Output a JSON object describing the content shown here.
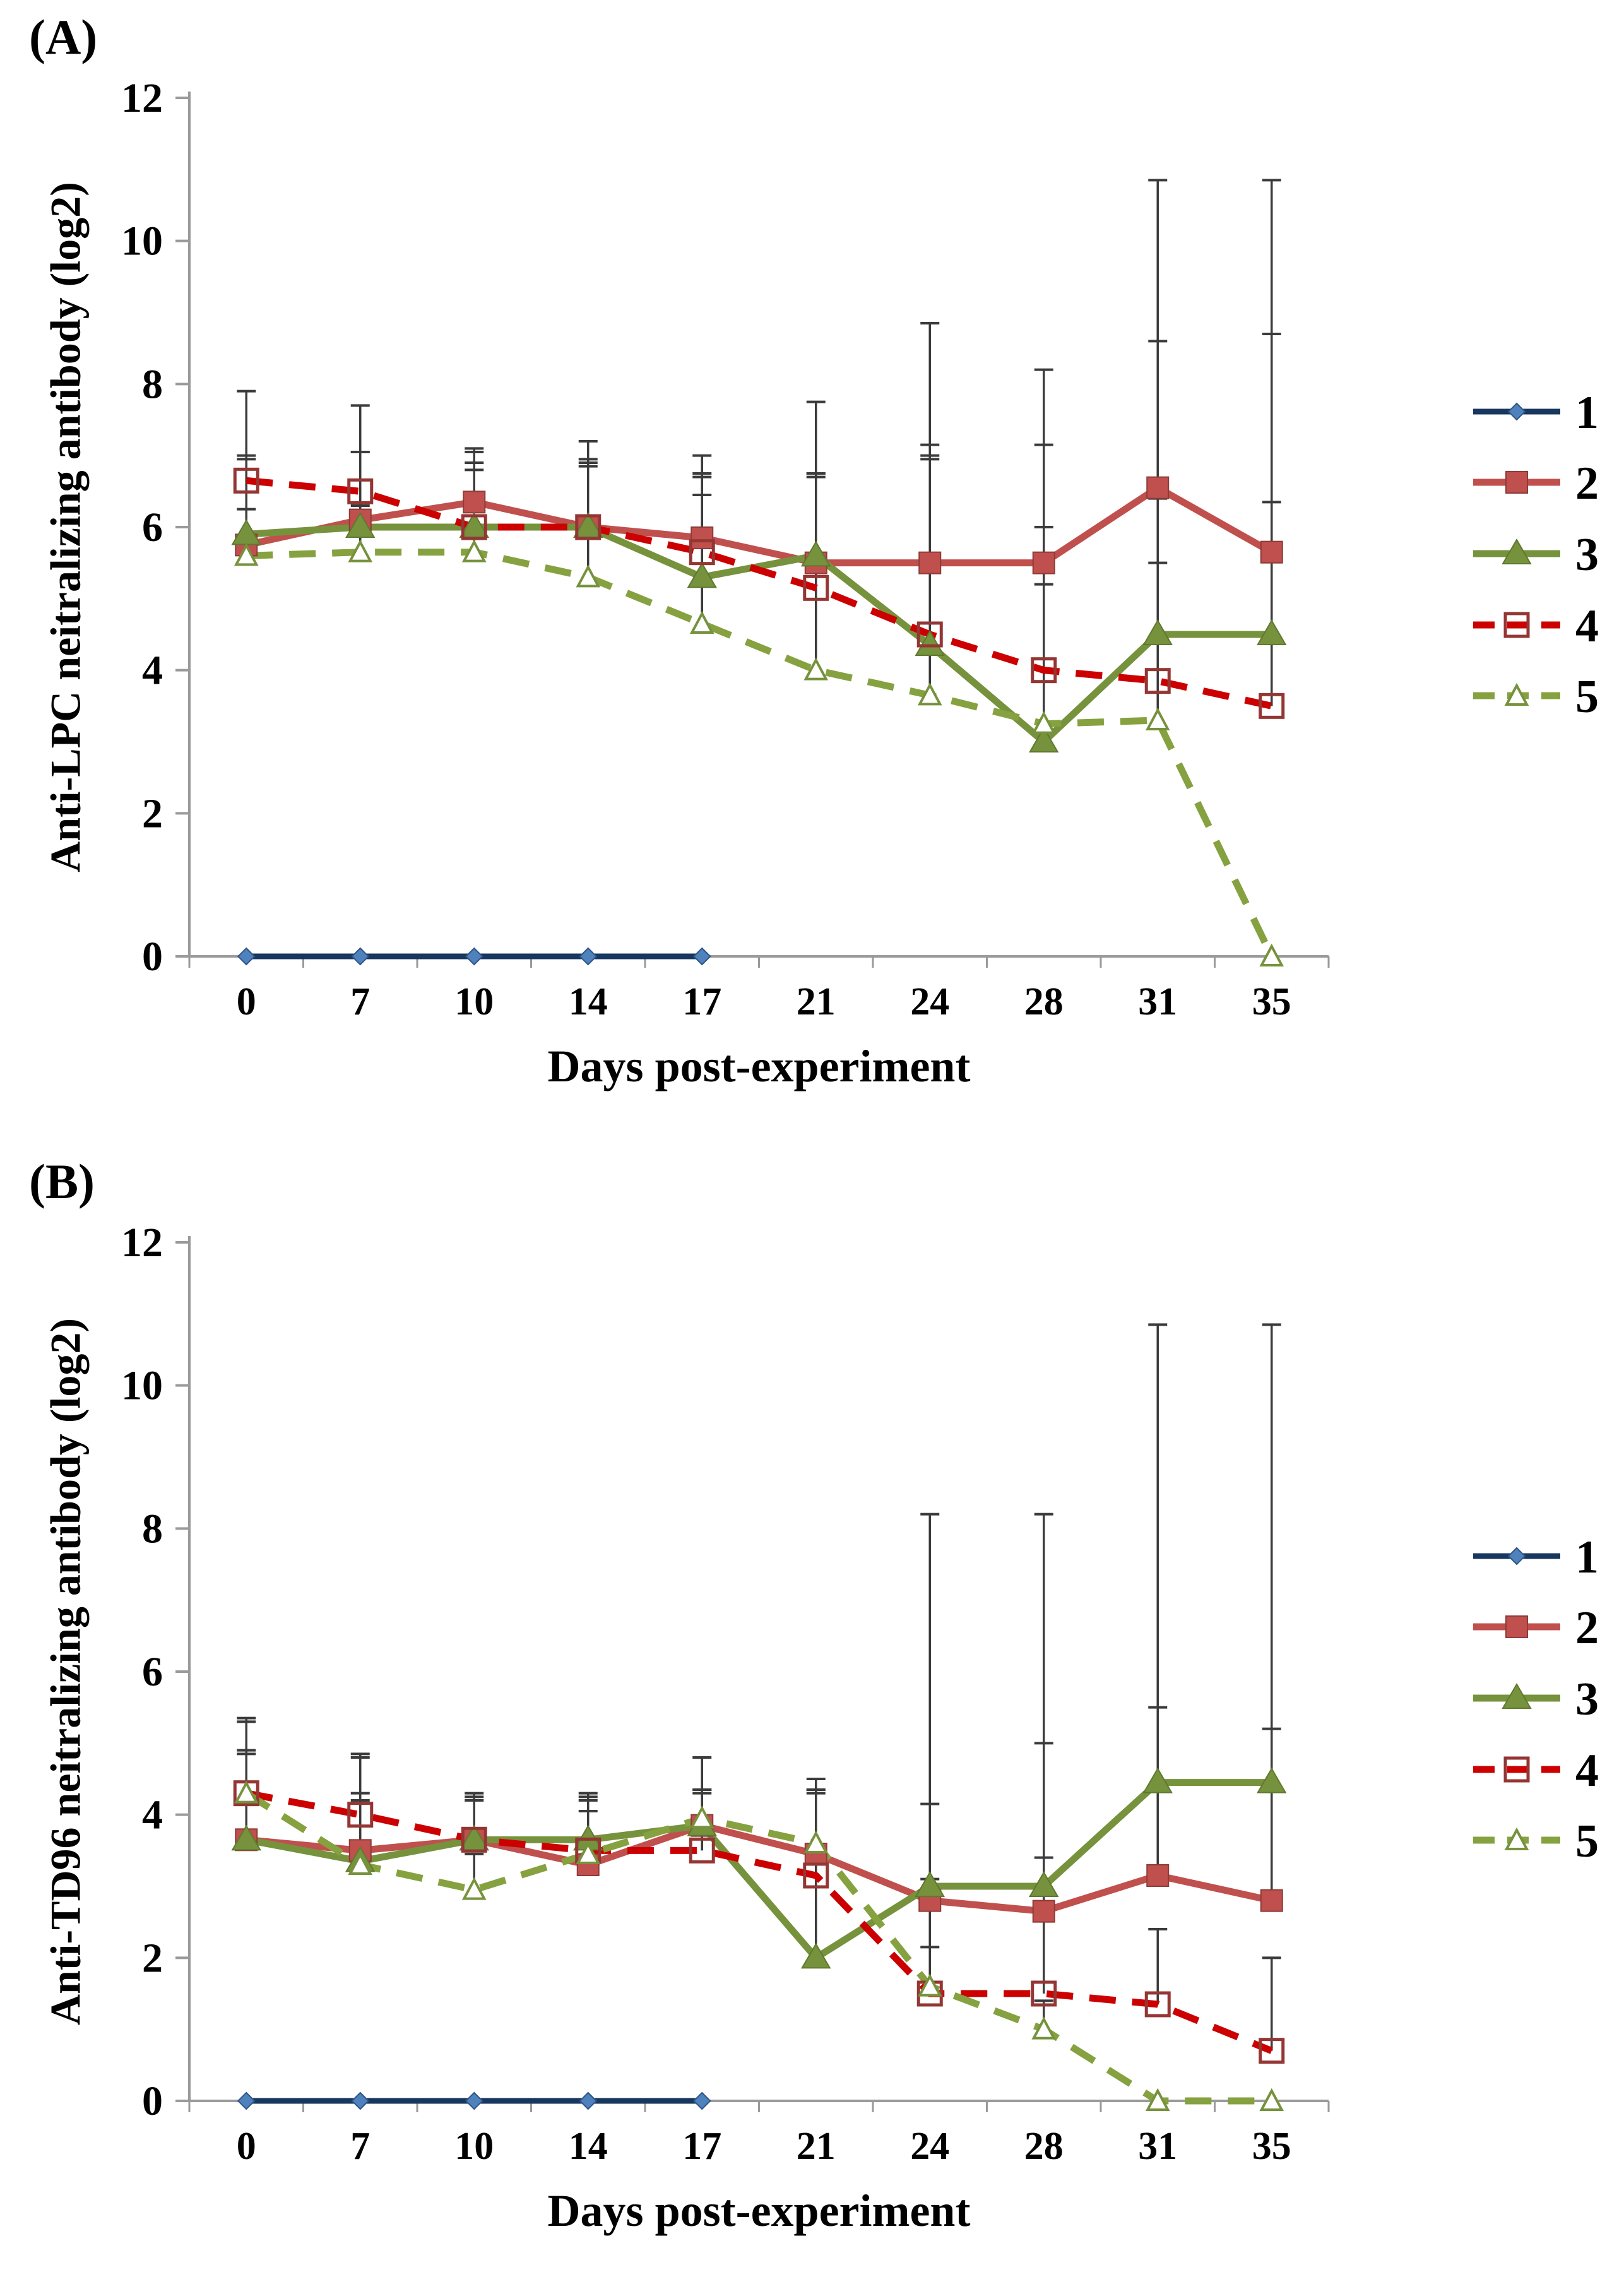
{
  "figure": {
    "description_note": "Two-panel line figure of neutralizing antibody titers over days post-experiment",
    "panel_a_label": "(A)",
    "panel_b_label": "(B)"
  },
  "style": {
    "background": "#ffffff",
    "axis_color": "#9a9a9a",
    "error_bar_color": "#3b3b3b",
    "text_color": "#000000",
    "series1_line": "#17375E",
    "series1_marker": "#4F81BD",
    "series2_color": "#C0504D",
    "series2_edge": "#8E3B38",
    "series3_color": "#76923C",
    "series3_edge": "#5F7830",
    "series4_line": "#CC0000",
    "series4_edge": "#943634",
    "series5_color": "#86A13F"
  },
  "chart_data": [
    {
      "type": "line",
      "panel": "(A)",
      "title": "",
      "ylabel": "Anti-LPC neitralizing antibody (log2)",
      "xlabel": "Days post-experiment",
      "ylim": [
        0,
        12
      ],
      "yticks": [
        0,
        2,
        4,
        6,
        8,
        10,
        12
      ],
      "grid": false,
      "legend_position": "right",
      "categories": [
        "0",
        "7",
        "10",
        "14",
        "17",
        "21",
        "24",
        "28",
        "31",
        "35"
      ],
      "series": [
        {
          "name": "1",
          "values": [
            0,
            0,
            0,
            0,
            0,
            null,
            null,
            null,
            null,
            null
          ],
          "err_up": [
            0,
            0,
            0,
            0,
            0,
            0,
            0,
            0,
            0,
            0
          ],
          "line": {
            "color": "#17375E",
            "dash": "solid",
            "width": 9
          },
          "marker": {
            "type": "diamond",
            "fill": "#4F81BD",
            "stroke": "#2E5586",
            "size": 26
          }
        },
        {
          "name": "2",
          "values": [
            5.75,
            6.1,
            6.35,
            6.0,
            5.85,
            5.5,
            5.5,
            5.5,
            6.55,
            5.65
          ],
          "err_up": [
            1.25,
            0.95,
            0.7,
            0.95,
            0.9,
            1.25,
            1.45,
            1.65,
            2.05,
            3.05
          ],
          "line": {
            "color": "#C0504D",
            "dash": "solid",
            "width": 11
          },
          "marker": {
            "type": "square",
            "fill": "#C0504D",
            "stroke": "#8E3B38",
            "size": 34
          }
        },
        {
          "name": "3",
          "values": [
            5.9,
            6.0,
            6.0,
            6.0,
            5.3,
            5.6,
            4.35,
            3.0,
            4.5,
            4.5
          ],
          "err_up": [
            2.0,
            1.7,
            1.1,
            1.2,
            1.7,
            2.15,
            4.5,
            5.2,
            6.35,
            6.35
          ],
          "line": {
            "color": "#76923C",
            "dash": "solid",
            "width": 11
          },
          "marker": {
            "type": "triangle",
            "fill": "#76923C",
            "stroke": "#5F7830",
            "size": 40
          }
        },
        {
          "name": "4",
          "values": [
            6.65,
            6.5,
            6.0,
            6.0,
            5.65,
            5.15,
            4.5,
            4.0,
            3.85,
            3.5
          ],
          "err_up": [
            0.3,
            0.55,
            0.9,
            0.9,
            0.8,
            1.6,
            2.65,
            2.0,
            2.55,
            2.85
          ],
          "line": {
            "color": "#CC0000",
            "dash": "dashed",
            "width": 11
          },
          "marker": {
            "type": "open-square",
            "fill": "none",
            "stroke": "#943634",
            "size": 36
          }
        },
        {
          "name": "5",
          "values": [
            5.6,
            5.65,
            5.65,
            5.3,
            4.65,
            4.0,
            3.65,
            3.25,
            3.3,
            0
          ],
          "err_up": [
            0.65,
            0.65,
            1.15,
            1.55,
            2.05,
            2.7,
            3.35,
            1.95,
            2.2,
            0
          ],
          "line": {
            "color": "#86A13F",
            "dash": "dashed",
            "width": 11
          },
          "marker": {
            "type": "open-triangle",
            "fill": "#ffffff",
            "stroke": "#76923C",
            "size": 36
          }
        }
      ]
    },
    {
      "type": "line",
      "panel": "(B)",
      "title": "",
      "ylabel": "Anti-TD96 neitralizing antibody (log2)",
      "xlabel": "Days post-experiment",
      "ylim": [
        0,
        12
      ],
      "yticks": [
        0,
        2,
        4,
        6,
        8,
        10,
        12
      ],
      "grid": false,
      "legend_position": "right",
      "categories": [
        "0",
        "7",
        "10",
        "14",
        "17",
        "21",
        "24",
        "28",
        "31",
        "35"
      ],
      "series": [
        {
          "name": "1",
          "values": [
            0,
            0,
            0,
            0,
            0,
            null,
            null,
            null,
            null,
            null
          ],
          "err_up": [
            0,
            0,
            0,
            0,
            0,
            0,
            0,
            0,
            0,
            0
          ],
          "line": {
            "color": "#17375E",
            "dash": "solid",
            "width": 9
          },
          "marker": {
            "type": "diamond",
            "fill": "#4F81BD",
            "stroke": "#2E5586",
            "size": 26
          }
        },
        {
          "name": "2",
          "values": [
            3.65,
            3.5,
            3.65,
            3.3,
            3.85,
            3.45,
            2.8,
            2.65,
            3.15,
            2.8
          ],
          "err_up": [
            1.25,
            0.8,
            0.55,
            1.0,
            0.5,
            0.85,
            1.35,
            2.35,
            2.35,
            2.4
          ],
          "line": {
            "color": "#C0504D",
            "dash": "solid",
            "width": 11
          },
          "marker": {
            "type": "square",
            "fill": "#C0504D",
            "stroke": "#8E3B38",
            "size": 34
          }
        },
        {
          "name": "3",
          "values": [
            3.65,
            3.35,
            3.65,
            3.65,
            3.85,
            2.0,
            3.0,
            3.0,
            4.45,
            4.45
          ],
          "err_up": [
            1.7,
            1.5,
            0.65,
            0.6,
            0.95,
            2.5,
            5.2,
            5.2,
            6.4,
            6.4
          ],
          "line": {
            "color": "#76923C",
            "dash": "solid",
            "width": 11
          },
          "marker": {
            "type": "triangle",
            "fill": "#76923C",
            "stroke": "#5F7830",
            "size": 40
          }
        },
        {
          "name": "4",
          "values": [
            4.3,
            4.0,
            3.65,
            3.5,
            3.5,
            3.15,
            1.5,
            1.5,
            1.35,
            0.7
          ],
          "err_up": [
            1.0,
            0.8,
            0.6,
            0.7,
            0.8,
            1.2,
            1.6,
            1.9,
            1.05,
            1.3
          ],
          "line": {
            "color": "#CC0000",
            "dash": "dashed",
            "width": 11
          },
          "marker": {
            "type": "open-square",
            "fill": "none",
            "stroke": "#943634",
            "size": 36
          }
        },
        {
          "name": "5",
          "values": [
            4.3,
            3.3,
            2.95,
            3.45,
            3.95,
            3.6,
            1.6,
            1.0,
            0,
            0
          ],
          "err_up": [
            0.55,
            0.9,
            0.5,
            0.6,
            0.4,
            0.75,
            0.55,
            0.4,
            0,
            0
          ],
          "line": {
            "color": "#86A13F",
            "dash": "dashed",
            "width": 11
          },
          "marker": {
            "type": "open-triangle",
            "fill": "#ffffff",
            "stroke": "#76923C",
            "size": 36
          }
        }
      ]
    }
  ]
}
